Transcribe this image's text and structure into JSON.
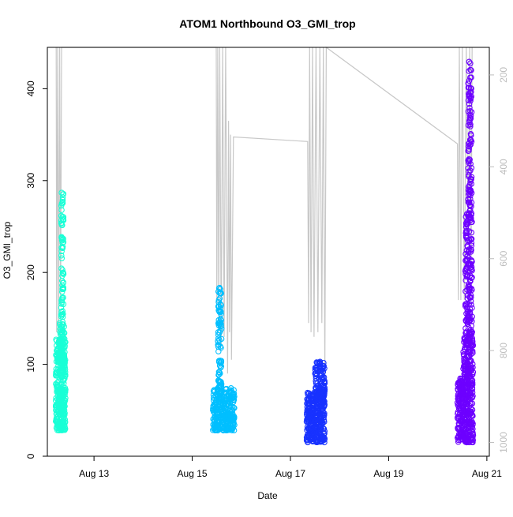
{
  "chart_data": {
    "type": "scatter",
    "title": "ATOM1 Northbound O3_GMI_trop",
    "xlabel": "Date",
    "ylabel": "O3_GMI_trop",
    "x_ticks": [
      "Aug 13",
      "Aug 15",
      "Aug 17",
      "Aug 19",
      "Aug 21"
    ],
    "x_tick_days": [
      13,
      15,
      17,
      19,
      21
    ],
    "xlim_days": [
      12.05,
      21.05
    ],
    "ylim": [
      0,
      445
    ],
    "y_ticks": [
      0,
      100,
      200,
      300,
      400
    ],
    "right_axis": {
      "label": "",
      "color": "#bdbdbd",
      "ticks": [
        200,
        400,
        600,
        800,
        1000
      ],
      "range_top_to_bottom": [
        140,
        1030
      ],
      "description": "pressure (hPa) shown by the gray flight-altitude trace"
    },
    "grid": false,
    "legend": "none",
    "colors": [
      "#19ffd6",
      "#00bfff",
      "#1832ff",
      "#6d00ff"
    ],
    "series": [
      {
        "color": "#19ffd6",
        "x_day_range": [
          12.22,
          12.42
        ],
        "clusters": [
          {
            "x0": 12.22,
            "x1": 12.42,
            "y_min": 28,
            "y_max": 128,
            "density": 340
          },
          {
            "x0": 12.3,
            "x1": 12.4,
            "y_min": 100,
            "y_max": 150,
            "density": 60
          },
          {
            "x0": 12.33,
            "x1": 12.38,
            "y_min": 150,
            "y_max": 292,
            "density": 70
          }
        ]
      },
      {
        "color": "#00bfff",
        "x_day_range": [
          15.42,
          15.86
        ],
        "clusters": [
          {
            "x0": 15.42,
            "x1": 15.86,
            "y_min": 28,
            "y_max": 75,
            "density": 300
          },
          {
            "x0": 15.52,
            "x1": 15.6,
            "y_min": 75,
            "y_max": 145,
            "density": 50
          },
          {
            "x0": 15.53,
            "x1": 15.59,
            "y_min": 145,
            "y_max": 185,
            "density": 30
          }
        ]
      },
      {
        "color": "#1832ff",
        "x_day_range": [
          17.33,
          17.7
        ],
        "clusters": [
          {
            "x0": 17.33,
            "x1": 17.7,
            "y_min": 15,
            "y_max": 70,
            "density": 320
          },
          {
            "x0": 17.5,
            "x1": 17.7,
            "y_min": 60,
            "y_max": 103,
            "density": 110
          }
        ]
      },
      {
        "color": "#6d00ff",
        "x_day_range": [
          20.4,
          20.72
        ],
        "clusters": [
          {
            "x0": 20.4,
            "x1": 20.72,
            "y_min": 15,
            "y_max": 85,
            "density": 320
          },
          {
            "x0": 20.52,
            "x1": 20.72,
            "y_min": 85,
            "y_max": 130,
            "density": 120
          },
          {
            "x0": 20.56,
            "x1": 20.7,
            "y_min": 130,
            "y_max": 265,
            "density": 160
          },
          {
            "x0": 20.62,
            "x1": 20.69,
            "y_min": 260,
            "y_max": 430,
            "density": 110
          }
        ]
      }
    ],
    "altitude_trace": {
      "color": "#c8c8c8",
      "pressure_points": [
        [
          12.23,
          140
        ],
        [
          12.24,
          760
        ],
        [
          12.26,
          140
        ],
        [
          12.28,
          800
        ],
        [
          12.3,
          140
        ],
        [
          12.32,
          700
        ],
        [
          12.34,
          140
        ],
        [
          15.49,
          140
        ],
        [
          15.5,
          700
        ],
        [
          15.52,
          140
        ],
        [
          15.54,
          750
        ],
        [
          15.56,
          140
        ],
        [
          15.59,
          790
        ],
        [
          15.62,
          140
        ],
        [
          15.65,
          770
        ],
        [
          15.68,
          140
        ],
        [
          15.72,
          850
        ],
        [
          15.74,
          300
        ],
        [
          15.76,
          760
        ],
        [
          15.78,
          330
        ],
        [
          15.8,
          820
        ],
        [
          15.84,
          335
        ],
        [
          17.35,
          345
        ],
        [
          17.37,
          740
        ],
        [
          17.39,
          140
        ],
        [
          17.42,
          760
        ],
        [
          17.45,
          140
        ],
        [
          17.48,
          770
        ],
        [
          17.52,
          140
        ],
        [
          17.56,
          760
        ],
        [
          17.6,
          140
        ],
        [
          17.64,
          740
        ],
        [
          17.67,
          140
        ],
        [
          17.7,
          850
        ],
        [
          17.73,
          140
        ],
        [
          20.4,
          350
        ],
        [
          20.42,
          690
        ],
        [
          20.44,
          140
        ],
        [
          20.47,
          690
        ],
        [
          20.5,
          140
        ],
        [
          20.54,
          690
        ],
        [
          20.58,
          140
        ],
        [
          20.62,
          560
        ],
        [
          20.65,
          140
        ],
        [
          20.68,
          620
        ],
        [
          20.7,
          140
        ]
      ]
    }
  }
}
